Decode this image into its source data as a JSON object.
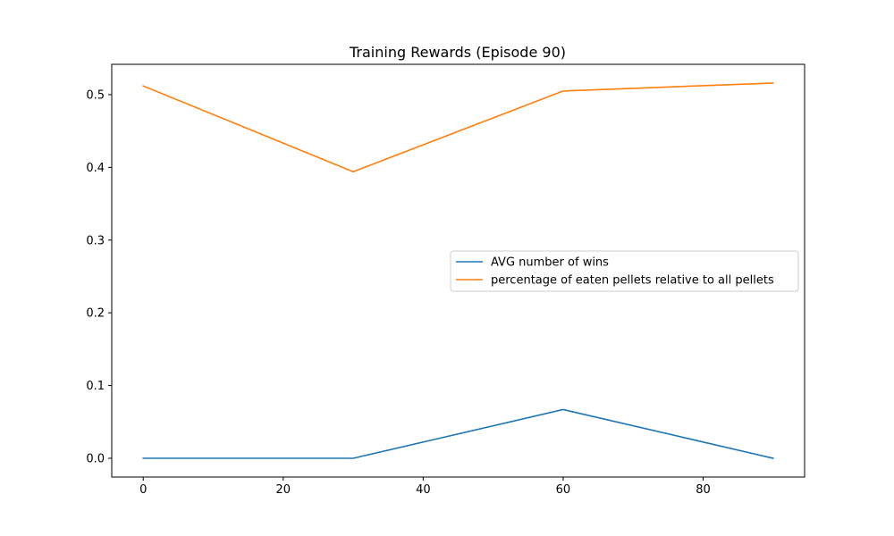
{
  "chart_data": {
    "type": "line",
    "title": "Training Rewards (Episode 90)",
    "xlabel": "",
    "ylabel": "",
    "x": [
      0,
      30,
      60,
      90
    ],
    "xlim": [
      -4.5,
      94.5
    ],
    "ylim": [
      -0.0258,
      0.5417
    ],
    "xticks": [
      0,
      20,
      40,
      60,
      80
    ],
    "yticks": [
      0.0,
      0.1,
      0.2,
      0.3,
      0.4,
      0.5
    ],
    "grid": false,
    "legend_position": "center-right",
    "series": [
      {
        "name": "AVG number of wins",
        "color": "#1f77b4",
        "values": [
          0.0,
          0.0,
          0.067,
          0.0
        ]
      },
      {
        "name": "percentage of eaten pellets relative to all pellets",
        "color": "#ff7f0e",
        "values": [
          0.512,
          0.394,
          0.505,
          0.516
        ]
      }
    ]
  }
}
